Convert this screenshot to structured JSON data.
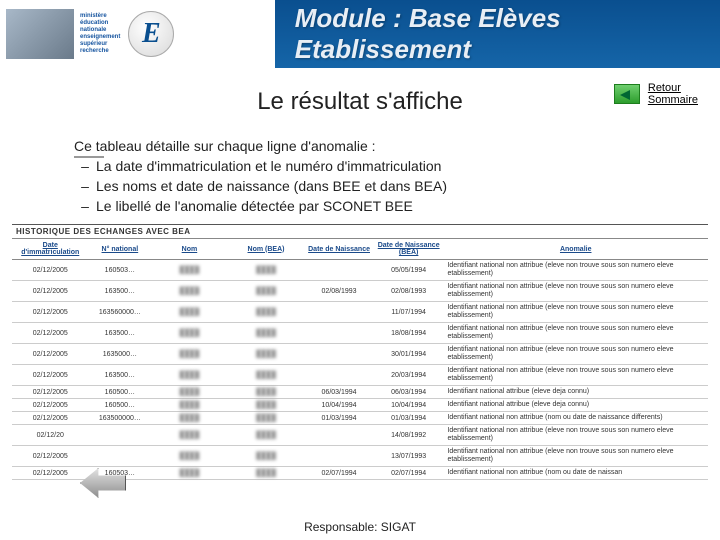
{
  "header": {
    "ministry_lines": [
      "ministère",
      "éducation",
      "nationale",
      "enseignement",
      "supérieur",
      "recherche"
    ],
    "module_title": "Module : Base Elèves Etablissement"
  },
  "headline": "Le résultat s'affiche",
  "retour": {
    "line1": "Retour",
    "line2": "Sommaire"
  },
  "intro": {
    "lead": "Ce tableau détaille sur chaque ligne d'anomalie :",
    "items": [
      "La date d'immatriculation et le numéro d'immatriculation",
      "Les noms et date de naissance (dans BEE et dans BEA)",
      "Le libellé de l'anomalie détectée par SCONET BEE"
    ]
  },
  "table": {
    "section_title": "HISTORIQUE DES ECHANGES AVEC BEA",
    "columns": [
      "Date d'immatriculation",
      "N° national",
      "Nom",
      "Nom (BEA)",
      "Date de Naissance",
      "Date de Naissance (BEA)",
      "Anomalie"
    ],
    "col_widths": [
      "11%",
      "9%",
      "11%",
      "11%",
      "10%",
      "10%",
      "38%"
    ],
    "rows": [
      [
        "02/12/2005",
        "160503…",
        "",
        "",
        "",
        "05/05/1994",
        "Identifiant national non attribue (eleve non trouve sous son numero eleve etablissement)"
      ],
      [
        "02/12/2005",
        "163500…",
        "",
        "",
        "02/08/1993",
        "02/08/1993",
        "Identifiant national non attribue (eleve non trouve sous son numero eleve etablissement)"
      ],
      [
        "02/12/2005",
        "163560000…",
        "",
        "",
        "",
        "11/07/1994",
        "Identifiant national non attribue (eleve non trouve sous son numero eleve etablissement)"
      ],
      [
        "02/12/2005",
        "163500…",
        "",
        "",
        "",
        "18/08/1994",
        "Identifiant national non attribue (eleve non trouve sous son numero eleve etablissement)"
      ],
      [
        "02/12/2005",
        "1635000…",
        "",
        "",
        "",
        "30/01/1994",
        "Identifiant national non attribue (eleve non trouve sous son numero eleve etablissement)"
      ],
      [
        "02/12/2005",
        "163500…",
        "",
        "",
        "",
        "20/03/1994",
        "Identifiant national non attribue (eleve non trouve sous son numero eleve etablissement)"
      ],
      [
        "02/12/2005",
        "160500…",
        "",
        "",
        "06/03/1994",
        "06/03/1994",
        "Identifiant national attribue (eleve deja connu)"
      ],
      [
        "02/12/2005",
        "160500…",
        "",
        "",
        "10/04/1994",
        "10/04/1994",
        "Identifiant national attribue (eleve deja connu)"
      ],
      [
        "02/12/2005",
        "163500000…",
        "",
        "",
        "01/03/1994",
        "01/03/1994",
        "Identifiant national non attribue (nom ou date de naissance differents)"
      ],
      [
        "02/12/20",
        "",
        "",
        "",
        "",
        "14/08/1992",
        "Identifiant national non attribue (eleve non trouve sous son numero eleve etablissement)"
      ],
      [
        "02/12/2005",
        "",
        "",
        "",
        "",
        "13/07/1993",
        "Identifiant national non attribue (eleve non trouve sous son numero eleve etablissement)"
      ],
      [
        "02/12/2005",
        "160503…",
        "",
        "",
        "02/07/1994",
        "02/07/1994",
        "Identifiant national non attribue (nom ou date de naissan"
      ]
    ]
  },
  "footer": "Responsable: SIGAT"
}
